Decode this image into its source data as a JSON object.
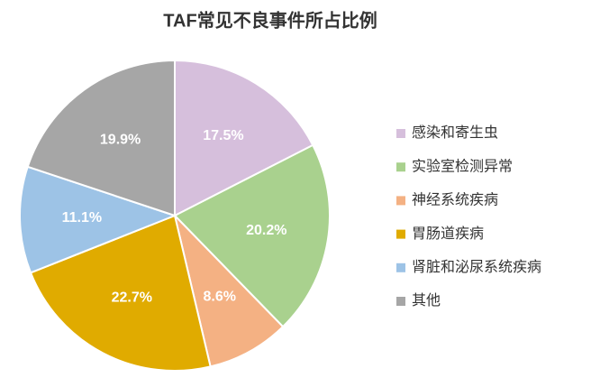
{
  "chart_data": {
    "type": "pie",
    "title": "TAF常见不良事件所占比例",
    "categories": [
      "感染和寄生虫",
      "实验室检测异常",
      "神经系统疾病",
      "胃肠道疾病",
      "肾脏和泌尿系统疾病",
      "其他"
    ],
    "values": [
      17.5,
      20.2,
      8.6,
      22.7,
      11.1,
      19.9
    ],
    "value_labels": [
      "17.5%",
      "20.2%",
      "8.6%",
      "22.7%",
      "11.1%",
      "19.9%"
    ],
    "colors": [
      "#d6bfdc",
      "#a9d18e",
      "#f4b183",
      "#e0ab00",
      "#9dc3e6",
      "#a6a6a6"
    ],
    "legend": "right"
  }
}
